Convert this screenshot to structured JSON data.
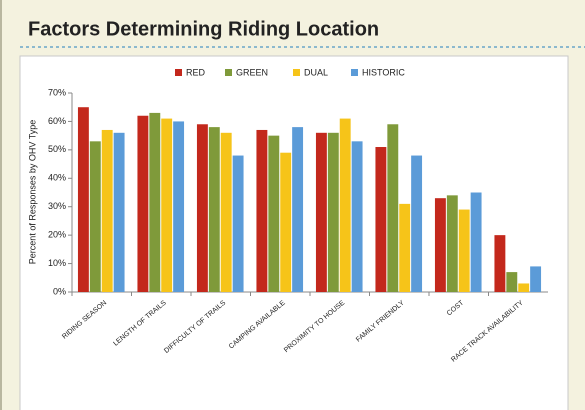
{
  "chart_data": {
    "type": "bar",
    "title": "Factors Determining Riding Location",
    "y_label": "Percent of Responses by OHV Type",
    "categories": [
      "RIDING SEASON",
      "LENGTH OF TRAILS",
      "DIFFICULTY OF TRAILS",
      "CAMPING AVAILABLE",
      "PROXIMITY TO HOUSE",
      "FAMILY FRIENDLY",
      "COST",
      "RACE TRACK AVAILABILITY"
    ],
    "series": [
      {
        "name": "RED",
        "color": "#c3281c",
        "values": [
          65,
          62,
          59,
          57,
          56,
          51,
          33,
          20
        ]
      },
      {
        "name": "GREEN",
        "color": "#7f9a3a",
        "values": [
          53,
          63,
          58,
          55,
          56,
          59,
          34,
          7
        ]
      },
      {
        "name": "DUAL",
        "color": "#f6c419",
        "values": [
          57,
          61,
          56,
          49,
          61,
          31,
          29,
          3
        ]
      },
      {
        "name": "HISTORIC",
        "color": "#5b9bd8",
        "values": [
          56,
          60,
          48,
          58,
          53,
          48,
          35,
          9
        ]
      }
    ],
    "ylim": [
      0,
      70
    ],
    "yticks": [
      {
        "value": 0,
        "label": "0%"
      },
      {
        "value": 10,
        "label": "10%"
      },
      {
        "value": 20,
        "label": "20%"
      },
      {
        "value": 30,
        "label": "30%"
      },
      {
        "value": 40,
        "label": "40%"
      },
      {
        "value": 50,
        "label": "50%"
      },
      {
        "value": 60,
        "label": "60%"
      },
      {
        "value": 70,
        "label": "70%"
      }
    ],
    "legend": "top"
  }
}
